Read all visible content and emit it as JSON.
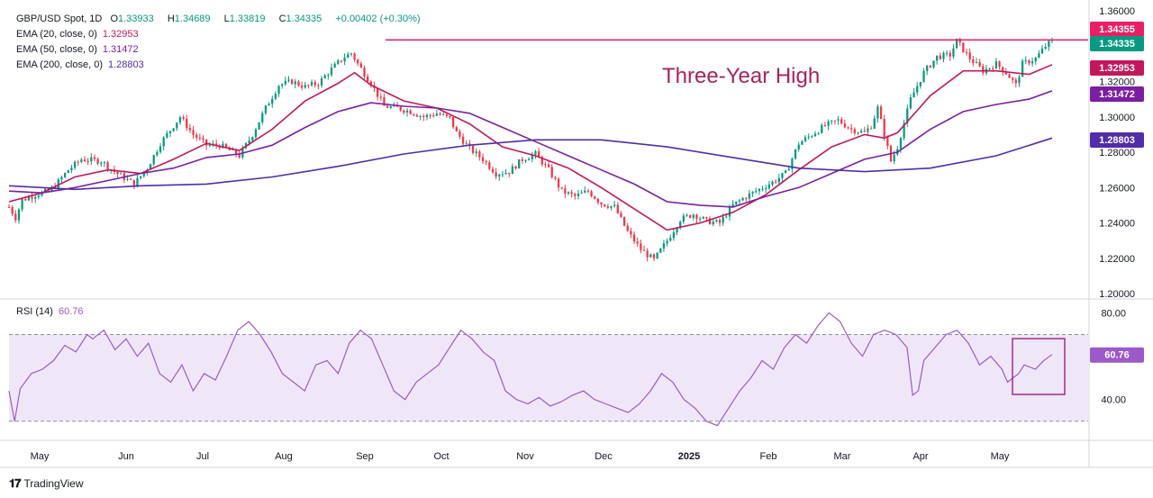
{
  "header": {
    "symbol": "GBP/USD Spot, 1D",
    "o_label": "O",
    "o": "1.33933",
    "h_label": "H",
    "h": "1.34689",
    "l_label": "L",
    "l": "1.33819",
    "c_label": "C",
    "c": "1.34335",
    "change": "+0.00402 (+0.30%)"
  },
  "indicators": [
    {
      "label": "EMA (20, close, 0)",
      "value": "1.32953",
      "color": "#c2185b"
    },
    {
      "label": "EMA (50, close, 0)",
      "value": "1.31472",
      "color": "#7b1fa2"
    },
    {
      "label": "EMA (200, close, 0)",
      "value": "1.28803",
      "color": "#512da8"
    }
  ],
  "rsi": {
    "label": "RSI (14)",
    "value": "60.76",
    "color": "#9c59c9"
  },
  "annotation": "Three-Year High",
  "price_badges": [
    {
      "value": "1.34355",
      "color": "#e91e63"
    },
    {
      "value": "1.34335",
      "color": "#089981"
    },
    {
      "value": "1.32953",
      "color": "#c2185b"
    },
    {
      "value": "1.31472",
      "color": "#7b1fa2"
    },
    {
      "value": "1.28803",
      "color": "#512da8"
    }
  ],
  "rsi_badge": "60.76",
  "attribution": "TradingView",
  "chart_data": {
    "type": "candlestick",
    "title": "GBP/USD Spot, 1D",
    "y_ticks": [
      "1.36000",
      "1.34000",
      "1.32000",
      "1.30000",
      "1.28000",
      "1.26000",
      "1.24000",
      "1.22000",
      "1.20000"
    ],
    "ylim": [
      1.197,
      1.361
    ],
    "rsi_ticks": [
      "80.00",
      "40.00"
    ],
    "rsi_lim": [
      22,
      86
    ],
    "rsi_levels": [
      70,
      30
    ],
    "x_labels": [
      "May",
      "Jun",
      "Jul",
      "Aug",
      "Sep",
      "Oct",
      "Nov",
      "Dec",
      "2025",
      "Feb",
      "Mar",
      "Apr",
      "May"
    ],
    "resistance_level": 1.3435,
    "close_series": [
      [
        0,
        1.249
      ],
      [
        2,
        1.243
      ],
      [
        4,
        1.253
      ],
      [
        8,
        1.256
      ],
      [
        12,
        1.258
      ],
      [
        14,
        1.261
      ],
      [
        18,
        1.27
      ],
      [
        22,
        1.276
      ],
      [
        28,
        1.275
      ],
      [
        32,
        1.269
      ],
      [
        38,
        1.262
      ],
      [
        42,
        1.271
      ],
      [
        46,
        1.285
      ],
      [
        52,
        1.3
      ],
      [
        56,
        1.29
      ],
      [
        60,
        1.284
      ],
      [
        64,
        1.284
      ],
      [
        70,
        1.278
      ],
      [
        74,
        1.29
      ],
      [
        78,
        1.305
      ],
      [
        82,
        1.318
      ],
      [
        86,
        1.32
      ],
      [
        90,
        1.317
      ],
      [
        94,
        1.319
      ],
      [
        98,
        1.327
      ],
      [
        102,
        1.334
      ],
      [
        104,
        1.336
      ],
      [
        106,
        1.33
      ],
      [
        110,
        1.319
      ],
      [
        114,
        1.306
      ],
      [
        118,
        1.305
      ],
      [
        122,
        1.303
      ],
      [
        126,
        1.3
      ],
      [
        130,
        1.302
      ],
      [
        134,
        1.299
      ],
      [
        136,
        1.291
      ],
      [
        140,
        1.282
      ],
      [
        144,
        1.276
      ],
      [
        148,
        1.268
      ],
      [
        152,
        1.269
      ],
      [
        156,
        1.276
      ],
      [
        160,
        1.279
      ],
      [
        164,
        1.27
      ],
      [
        168,
        1.258
      ],
      [
        172,
        1.255
      ],
      [
        176,
        1.258
      ],
      [
        180,
        1.251
      ],
      [
        184,
        1.249
      ],
      [
        188,
        1.235
      ],
      [
        192,
        1.225
      ],
      [
        196,
        1.219
      ],
      [
        200,
        1.23
      ],
      [
        204,
        1.242
      ],
      [
        208,
        1.245
      ],
      [
        212,
        1.241
      ],
      [
        216,
        1.24
      ],
      [
        220,
        1.25
      ],
      [
        224,
        1.255
      ],
      [
        228,
        1.259
      ],
      [
        232,
        1.263
      ],
      [
        236,
        1.268
      ],
      [
        240,
        1.285
      ],
      [
        244,
        1.29
      ],
      [
        248,
        1.295
      ],
      [
        252,
        1.298
      ],
      [
        256,
        1.293
      ],
      [
        260,
        1.291
      ],
      [
        262,
        1.295
      ],
      [
        264,
        1.305
      ],
      [
        266,
        1.29
      ],
      [
        268,
        1.275
      ],
      [
        270,
        1.283
      ],
      [
        274,
        1.31
      ],
      [
        278,
        1.325
      ],
      [
        282,
        1.334
      ],
      [
        286,
        1.335
      ],
      [
        288,
        1.343
      ],
      [
        290,
        1.338
      ],
      [
        292,
        1.333
      ],
      [
        296,
        1.326
      ],
      [
        300,
        1.33
      ],
      [
        303,
        1.325
      ],
      [
        306,
        1.318
      ],
      [
        308,
        1.33
      ],
      [
        312,
        1.333
      ],
      [
        315,
        1.34
      ],
      [
        317,
        1.343
      ]
    ],
    "ema20": [
      [
        0,
        1.252
      ],
      [
        10,
        1.257
      ],
      [
        20,
        1.266
      ],
      [
        30,
        1.27
      ],
      [
        40,
        1.268
      ],
      [
        50,
        1.276
      ],
      [
        60,
        1.285
      ],
      [
        70,
        1.281
      ],
      [
        80,
        1.293
      ],
      [
        90,
        1.309
      ],
      [
        100,
        1.319
      ],
      [
        105,
        1.325
      ],
      [
        110,
        1.318
      ],
      [
        120,
        1.309
      ],
      [
        130,
        1.305
      ],
      [
        140,
        1.296
      ],
      [
        150,
        1.283
      ],
      [
        160,
        1.278
      ],
      [
        170,
        1.271
      ],
      [
        180,
        1.26
      ],
      [
        190,
        1.248
      ],
      [
        200,
        1.236
      ],
      [
        210,
        1.24
      ],
      [
        220,
        1.246
      ],
      [
        230,
        1.256
      ],
      [
        240,
        1.27
      ],
      [
        250,
        1.283
      ],
      [
        260,
        1.29
      ],
      [
        266,
        1.288
      ],
      [
        270,
        1.291
      ],
      [
        280,
        1.312
      ],
      [
        290,
        1.326
      ],
      [
        300,
        1.326
      ],
      [
        310,
        1.324
      ],
      [
        317,
        1.3295
      ]
    ],
    "ema50": [
      [
        0,
        1.258
      ],
      [
        10,
        1.257
      ],
      [
        20,
        1.26
      ],
      [
        30,
        1.264
      ],
      [
        40,
        1.268
      ],
      [
        50,
        1.271
      ],
      [
        60,
        1.277
      ],
      [
        70,
        1.279
      ],
      [
        80,
        1.284
      ],
      [
        90,
        1.294
      ],
      [
        100,
        1.303
      ],
      [
        110,
        1.308
      ],
      [
        120,
        1.306
      ],
      [
        130,
        1.305
      ],
      [
        140,
        1.302
      ],
      [
        150,
        1.294
      ],
      [
        160,
        1.286
      ],
      [
        170,
        1.278
      ],
      [
        180,
        1.27
      ],
      [
        190,
        1.262
      ],
      [
        200,
        1.252
      ],
      [
        210,
        1.25
      ],
      [
        220,
        1.249
      ],
      [
        230,
        1.255
      ],
      [
        240,
        1.26
      ],
      [
        250,
        1.268
      ],
      [
        260,
        1.276
      ],
      [
        270,
        1.28
      ],
      [
        280,
        1.293
      ],
      [
        290,
        1.303
      ],
      [
        300,
        1.307
      ],
      [
        310,
        1.31
      ],
      [
        317,
        1.3147
      ]
    ],
    "ema200": [
      [
        0,
        1.261
      ],
      [
        20,
        1.259
      ],
      [
        40,
        1.261
      ],
      [
        60,
        1.262
      ],
      [
        80,
        1.266
      ],
      [
        100,
        1.272
      ],
      [
        120,
        1.279
      ],
      [
        140,
        1.284
      ],
      [
        160,
        1.287
      ],
      [
        180,
        1.287
      ],
      [
        200,
        1.283
      ],
      [
        220,
        1.277
      ],
      [
        240,
        1.271
      ],
      [
        260,
        1.269
      ],
      [
        280,
        1.271
      ],
      [
        300,
        1.278
      ],
      [
        317,
        1.288
      ]
    ],
    "rsi_series": [
      [
        0,
        44
      ],
      [
        2,
        30
      ],
      [
        4,
        45
      ],
      [
        8,
        52
      ],
      [
        12,
        54
      ],
      [
        16,
        58
      ],
      [
        20,
        65
      ],
      [
        24,
        62
      ],
      [
        28,
        70
      ],
      [
        30,
        68
      ],
      [
        34,
        72
      ],
      [
        38,
        63
      ],
      [
        42,
        68
      ],
      [
        46,
        60
      ],
      [
        50,
        66
      ],
      [
        54,
        52
      ],
      [
        58,
        48
      ],
      [
        62,
        56
      ],
      [
        66,
        44
      ],
      [
        70,
        52
      ],
      [
        74,
        49
      ],
      [
        78,
        60
      ],
      [
        82,
        72
      ],
      [
        86,
        76
      ],
      [
        90,
        70
      ],
      [
        94,
        62
      ],
      [
        98,
        52
      ],
      [
        102,
        48
      ],
      [
        106,
        44
      ],
      [
        110,
        56
      ],
      [
        114,
        58
      ],
      [
        118,
        52
      ],
      [
        122,
        66
      ],
      [
        126,
        72
      ],
      [
        130,
        68
      ],
      [
        134,
        56
      ],
      [
        138,
        44
      ],
      [
        142,
        40
      ],
      [
        146,
        48
      ],
      [
        150,
        52
      ],
      [
        154,
        56
      ],
      [
        158,
        64
      ],
      [
        162,
        72
      ],
      [
        166,
        68
      ],
      [
        170,
        62
      ],
      [
        174,
        58
      ],
      [
        178,
        44
      ],
      [
        182,
        40
      ],
      [
        186,
        38
      ],
      [
        190,
        41
      ],
      [
        194,
        37
      ],
      [
        198,
        39
      ],
      [
        202,
        42
      ],
      [
        206,
        44
      ],
      [
        210,
        40
      ],
      [
        214,
        38
      ],
      [
        218,
        36
      ],
      [
        222,
        34
      ],
      [
        226,
        38
      ],
      [
        230,
        44
      ],
      [
        234,
        52
      ],
      [
        238,
        48
      ],
      [
        242,
        40
      ],
      [
        246,
        36
      ],
      [
        250,
        30
      ],
      [
        254,
        28
      ],
      [
        258,
        36
      ],
      [
        262,
        44
      ],
      [
        266,
        50
      ],
      [
        270,
        58
      ],
      [
        274,
        54
      ],
      [
        278,
        64
      ],
      [
        282,
        70
      ],
      [
        286,
        66
      ],
      [
        290,
        74
      ],
      [
        294,
        80
      ],
      [
        298,
        76
      ],
      [
        302,
        66
      ],
      [
        306,
        60
      ],
      [
        310,
        70
      ],
      [
        314,
        72
      ],
      [
        318,
        70
      ],
      [
        322,
        64
      ],
      [
        324,
        42
      ],
      [
        326,
        44
      ],
      [
        328,
        58
      ],
      [
        332,
        64
      ],
      [
        336,
        70
      ],
      [
        340,
        72
      ],
      [
        344,
        66
      ],
      [
        348,
        56
      ],
      [
        352,
        60
      ],
      [
        356,
        54
      ],
      [
        358,
        48
      ],
      [
        362,
        52
      ],
      [
        364,
        56
      ],
      [
        368,
        54
      ],
      [
        371,
        58
      ],
      [
        374,
        60.76
      ]
    ]
  }
}
